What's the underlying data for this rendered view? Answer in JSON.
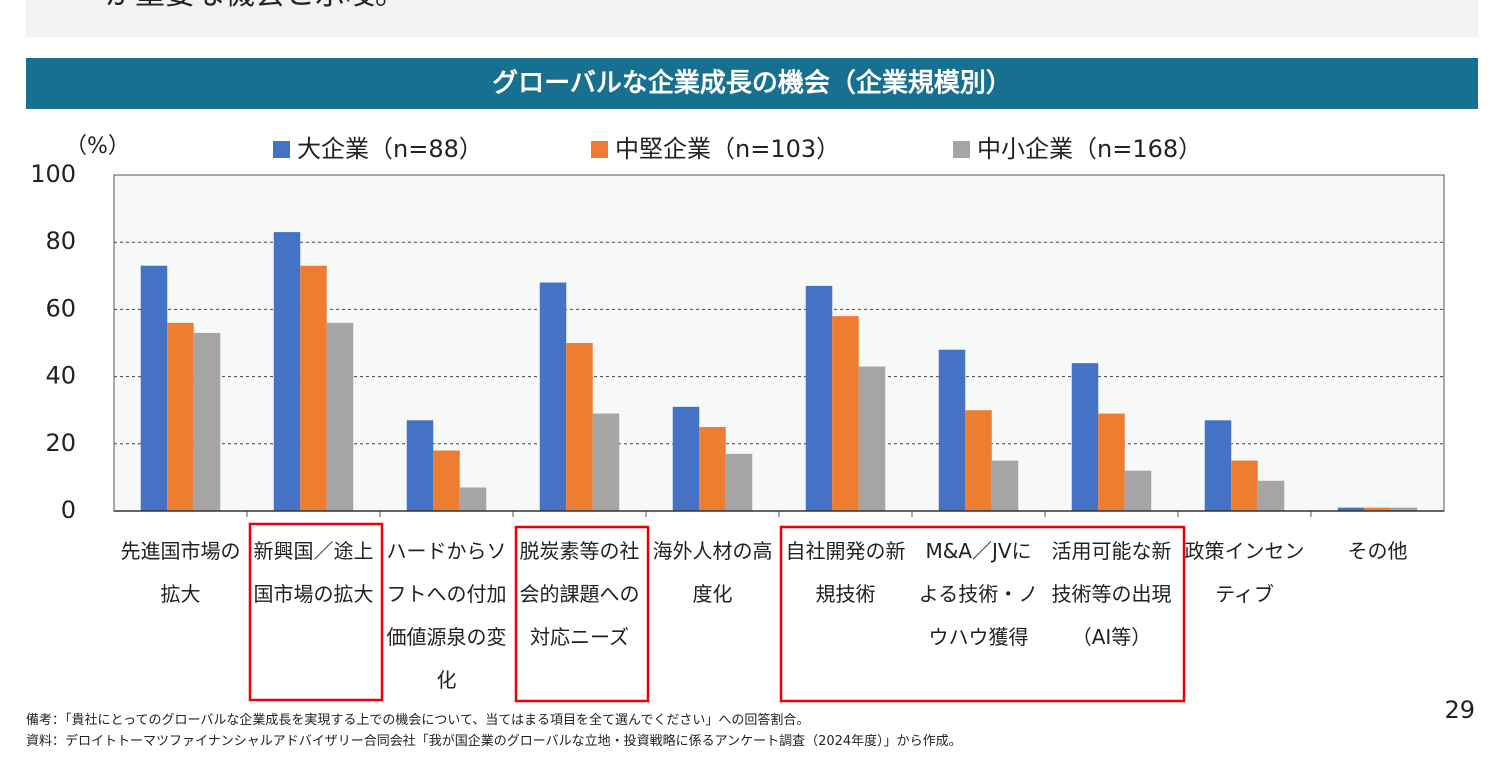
{
  "intro_text": "が重要な機会と示唆。",
  "chart_data": {
    "type": "bar",
    "title": "グローバルな企業成長の機会（企業規模別）",
    "y_axis_label": "（%）",
    "categories": [
      "先進国市場の拡大",
      "新興国／途上国市場の拡大",
      "ハードからソフトへの付加価値源泉の変化",
      "脱炭素等の社会的課題への対応ニーズ",
      "海外人材の高度化",
      "自社開発の新規技術",
      "M&A／JVによる技術・ノウハウ獲得",
      "活用可能な新技術等の出現（AI等）",
      "政策インセンティブ",
      "その他"
    ],
    "series": [
      {
        "name": "大企業（n=88）",
        "color": "#4472c4",
        "values": [
          73,
          83,
          27,
          68,
          31,
          67,
          48,
          44,
          27,
          1
        ]
      },
      {
        "name": "中堅企業（n=103）",
        "color": "#ed7d31",
        "values": [
          56,
          73,
          18,
          50,
          25,
          58,
          30,
          29,
          15,
          1
        ]
      },
      {
        "name": "中小企業（n=168）",
        "color": "#a5a5a5",
        "values": [
          53,
          56,
          7,
          29,
          17,
          43,
          15,
          12,
          9,
          1
        ]
      }
    ],
    "ylim": [
      0,
      100
    ],
    "yticks": [
      0,
      20,
      40,
      60,
      80,
      100
    ],
    "grid": true
  },
  "notes": [
    "備考：「貴社にとってのグローバルな企業成長を実現する上での機会について、当てはまる項目を全て選んでください」への回答割合。",
    "資料：デロイトトーマツファイナンシャルアドバイザリー合同会社「我が国企業のグローバルな立地・投資戦略に係るアンケート調査（2024年度）」から作成。"
  ],
  "page_number": "29"
}
